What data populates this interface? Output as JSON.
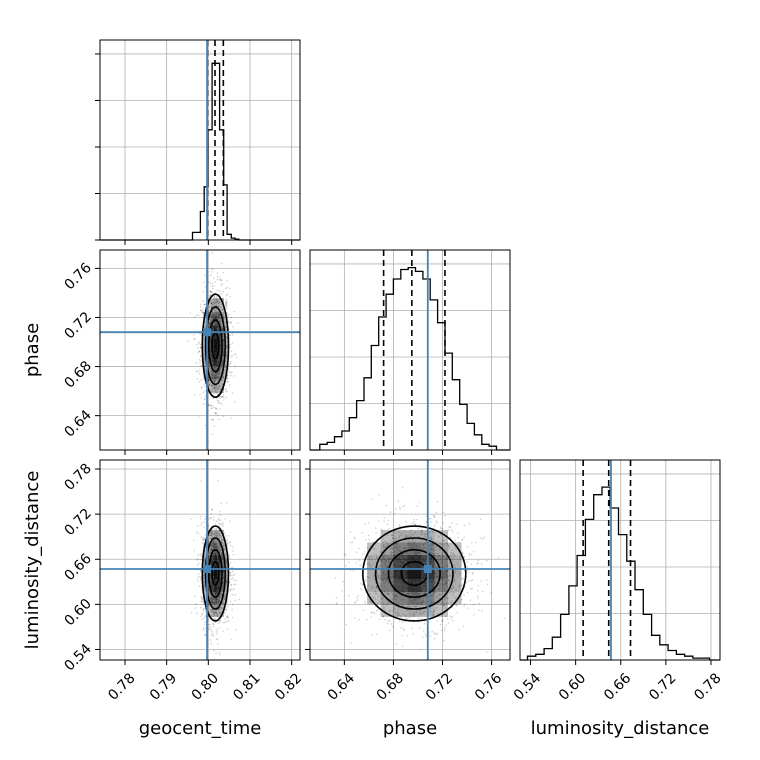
{
  "chart_data": {
    "type": "corner",
    "parameters": [
      "geocent_time",
      "phase",
      "luminosity_distance"
    ],
    "ranges": {
      "geocent_time": [
        0.774,
        0.822
      ],
      "phase": [
        0.612,
        0.775
      ],
      "luminosity_distance": [
        0.526,
        0.792
      ]
    },
    "ticks": {
      "geocent_time": [
        0.78,
        0.79,
        0.8,
        0.81,
        0.82
      ],
      "phase": [
        0.64,
        0.68,
        0.72,
        0.76
      ],
      "luminosity_distance": [
        0.54,
        0.6,
        0.66,
        0.72,
        0.78
      ]
    },
    "tick_labels": {
      "geocent_time": [
        "0.78",
        "0.79",
        "0.80",
        "0.81",
        "0.82"
      ],
      "phase": [
        "0.64",
        "0.68",
        "0.72",
        "0.76"
      ],
      "luminosity_distance": [
        "0.54",
        "0.60",
        "0.66",
        "0.72",
        "0.78"
      ]
    },
    "truths": {
      "geocent_time": 0.7997,
      "phase": 0.708,
      "luminosity_distance": 0.647
    },
    "quantiles": {
      "geocent_time": [
        0.7998,
        0.8016,
        0.8036
      ],
      "phase": [
        0.672,
        0.695,
        0.722
      ],
      "luminosity_distance": [
        0.61,
        0.644,
        0.673
      ]
    },
    "marginals": {
      "geocent_time": {
        "bin_edges": [
          0.7962,
          0.7981,
          0.799,
          0.7999,
          0.8009,
          0.8027,
          0.8037,
          0.8045,
          0.8055,
          0.8064,
          0.8073,
          0.808
        ],
        "counts": [
          0.04,
          0.15,
          0.28,
          0.58,
          0.93,
          0.58,
          0.29,
          0.03,
          0.01,
          0.005,
          0.0
        ]
      },
      "phase": {
        "bins": [
          0.62,
          0.626,
          0.632,
          0.638,
          0.644,
          0.65,
          0.656,
          0.662,
          0.668,
          0.674,
          0.68,
          0.686,
          0.692,
          0.698,
          0.704,
          0.71,
          0.716,
          0.722,
          0.728,
          0.734,
          0.74,
          0.746,
          0.752,
          0.758
        ],
        "counts": [
          0.03,
          0.04,
          0.07,
          0.1,
          0.17,
          0.26,
          0.38,
          0.55,
          0.7,
          0.82,
          0.9,
          0.95,
          0.96,
          0.94,
          0.9,
          0.79,
          0.67,
          0.51,
          0.37,
          0.24,
          0.14,
          0.08,
          0.03,
          0.02
        ]
      },
      "luminosity_distance": {
        "bins": [
          0.536,
          0.547,
          0.558,
          0.569,
          0.58,
          0.591,
          0.602,
          0.613,
          0.624,
          0.635,
          0.646,
          0.657,
          0.668,
          0.679,
          0.69,
          0.701,
          0.712,
          0.723,
          0.734,
          0.745,
          0.756,
          0.767
        ],
        "counts": [
          0.02,
          0.03,
          0.06,
          0.12,
          0.24,
          0.39,
          0.55,
          0.74,
          0.87,
          0.91,
          0.8,
          0.66,
          0.52,
          0.37,
          0.24,
          0.13,
          0.08,
          0.05,
          0.03,
          0.02,
          0.01,
          0.01
        ]
      }
    },
    "posterior_summary": {
      "mean": {
        "geocent_time": 0.8017,
        "phase": 0.697,
        "luminosity_distance": 0.641
      },
      "std": {
        "geocent_time": 0.0015,
        "phase": 0.02,
        "luminosity_distance": 0.03
      }
    },
    "colors": {
      "truth": "#4682b4",
      "hist": "#000000",
      "grid": "#b0b0b0"
    },
    "grid": true
  }
}
